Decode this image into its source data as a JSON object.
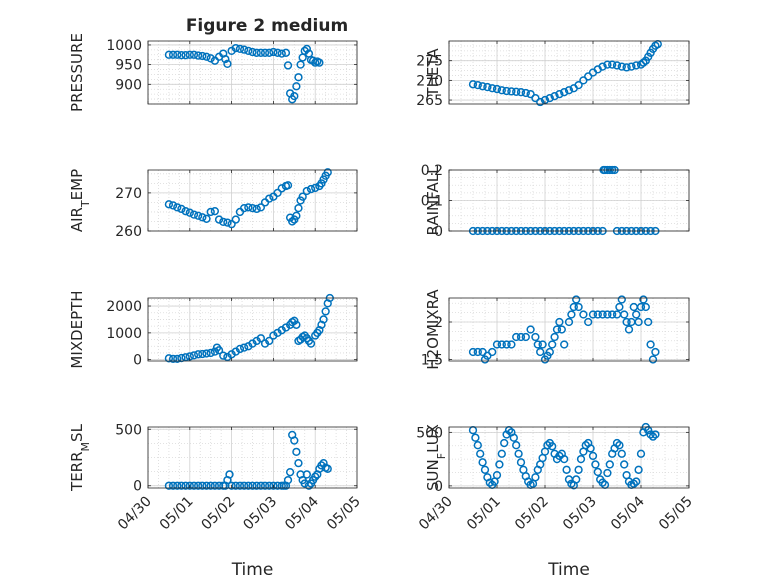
{
  "figure": {
    "title": "Figure 2 medium"
  },
  "chart_data": [
    {
      "type": "scatter",
      "ylabel": "PRESSURE",
      "xlabel": "",
      "ylim": [
        850,
        1010
      ],
      "yticks": [
        900,
        950,
        1000
      ],
      "xlim": [
        0,
        5
      ],
      "xticks": [
        0,
        1,
        2,
        3,
        4,
        5
      ],
      "xticklabels": [
        "04/30",
        "05/01",
        "05/02",
        "05/03",
        "05/04",
        "05/05"
      ],
      "show_xticklabels": false,
      "grid": "major+minor",
      "series": [
        {
          "color": "#0072BD",
          "x": [
            0.5,
            0.6,
            0.7,
            0.8,
            0.9,
            1.0,
            1.1,
            1.2,
            1.3,
            1.4,
            1.5,
            1.6,
            1.7,
            1.8,
            1.85,
            1.9,
            2.0,
            2.1,
            2.2,
            2.3,
            2.4,
            2.5,
            2.6,
            2.7,
            2.8,
            2.9,
            3.0,
            3.1,
            3.2,
            3.3,
            3.35,
            3.4,
            3.45,
            3.5,
            3.55,
            3.6,
            3.65,
            3.7,
            3.75,
            3.8,
            3.85,
            3.9,
            3.95,
            4.0,
            4.05,
            4.1
          ],
          "y": [
            975,
            975,
            975,
            974,
            974,
            975,
            975,
            973,
            972,
            970,
            966,
            960,
            970,
            978,
            964,
            952,
            985,
            992,
            990,
            988,
            985,
            982,
            980,
            980,
            980,
            980,
            982,
            980,
            978,
            980,
            948,
            877,
            862,
            870,
            895,
            918,
            950,
            968,
            985,
            990,
            978,
            962,
            960,
            955,
            958,
            955
          ]
        }
      ]
    },
    {
      "type": "scatter",
      "ylabel": "THETA",
      "xlabel": "",
      "ylim": [
        264,
        280
      ],
      "yticks": [
        265,
        270,
        275
      ],
      "xlim": [
        0,
        5
      ],
      "xticks": [
        0,
        1,
        2,
        3,
        4,
        5
      ],
      "xticklabels": [
        "04/30",
        "05/01",
        "05/02",
        "05/03",
        "05/04",
        "05/05"
      ],
      "show_xticklabels": false,
      "grid": "major+minor",
      "series": [
        {
          "color": "#0072BD",
          "x": [
            0.5,
            0.6,
            0.7,
            0.8,
            0.9,
            1.0,
            1.1,
            1.2,
            1.3,
            1.4,
            1.5,
            1.6,
            1.7,
            1.8,
            1.9,
            2.0,
            2.1,
            2.2,
            2.3,
            2.4,
            2.5,
            2.6,
            2.7,
            2.8,
            2.9,
            3.0,
            3.1,
            3.2,
            3.3,
            3.4,
            3.5,
            3.6,
            3.7,
            3.8,
            3.9,
            4.0,
            4.05,
            4.1,
            4.15,
            4.2,
            4.25,
            4.3,
            4.35
          ],
          "y": [
            269,
            268.8,
            268.5,
            268.3,
            268,
            267.8,
            267.5,
            267.3,
            267.2,
            267.1,
            267,
            266.8,
            266.5,
            265.5,
            264.5,
            265,
            265.5,
            266,
            266.5,
            267,
            267.5,
            268,
            268.8,
            270,
            271,
            272,
            272.8,
            273.5,
            274,
            274,
            273.8,
            273.5,
            273.3,
            273.5,
            273.8,
            274,
            274.5,
            275,
            276,
            277,
            278,
            278.8,
            279.2
          ]
        }
      ]
    },
    {
      "type": "scatter",
      "ylabel": "AIR_T_EMP",
      "xlabel": "",
      "ylim": [
        260,
        276
      ],
      "yticks": [
        260,
        270
      ],
      "xlim": [
        0,
        5
      ],
      "xticks": [
        0,
        1,
        2,
        3,
        4,
        5
      ],
      "xticklabels": [
        "04/30",
        "05/01",
        "05/02",
        "05/03",
        "05/04",
        "05/05"
      ],
      "show_xticklabels": false,
      "grid": "major+minor",
      "series": [
        {
          "color": "#0072BD",
          "x": [
            0.5,
            0.6,
            0.7,
            0.8,
            0.9,
            1.0,
            1.1,
            1.2,
            1.3,
            1.4,
            1.5,
            1.6,
            1.7,
            1.8,
            1.9,
            2.0,
            2.1,
            2.2,
            2.3,
            2.4,
            2.5,
            2.6,
            2.7,
            2.8,
            2.9,
            3.0,
            3.1,
            3.2,
            3.3,
            3.35,
            3.4,
            3.45,
            3.5,
            3.55,
            3.6,
            3.65,
            3.7,
            3.8,
            3.9,
            4.0,
            4.1,
            4.15,
            4.2,
            4.25,
            4.3
          ],
          "y": [
            267,
            266.7,
            266.2,
            265.8,
            265.2,
            264.8,
            264.3,
            264,
            263.6,
            263.2,
            265,
            265.2,
            263,
            262.4,
            262.2,
            261.8,
            263,
            265,
            266,
            266.2,
            266,
            265.8,
            266.2,
            267.5,
            268.5,
            269,
            270,
            271.2,
            271.8,
            272,
            263.5,
            262.5,
            263,
            264,
            266,
            268,
            269,
            270.5,
            271,
            271.3,
            271.8,
            272.5,
            273.5,
            274.5,
            275.4
          ]
        }
      ]
    },
    {
      "type": "scatter",
      "ylabel": "RAINFALL",
      "xlabel": "",
      "ylim": [
        0,
        0.2
      ],
      "yticks": [
        0,
        0.1,
        0.2
      ],
      "xlim": [
        0,
        5
      ],
      "xticks": [
        0,
        1,
        2,
        3,
        4,
        5
      ],
      "xticklabels": [
        "04/30",
        "05/01",
        "05/02",
        "05/03",
        "05/04",
        "05/05"
      ],
      "show_xticklabels": false,
      "grid": "major+minor",
      "series": [
        {
          "color": "#0072BD",
          "x": [
            0.5,
            0.6,
            0.7,
            0.8,
            0.9,
            1.0,
            1.1,
            1.2,
            1.3,
            1.4,
            1.5,
            1.6,
            1.7,
            1.8,
            1.9,
            2.0,
            2.1,
            2.2,
            2.3,
            2.4,
            2.5,
            2.6,
            2.7,
            2.8,
            2.9,
            3.0,
            3.1,
            3.2,
            3.22,
            3.25,
            3.3,
            3.35,
            3.4,
            3.45,
            3.5,
            3.6,
            3.7,
            3.8,
            3.9,
            4.0,
            4.1,
            4.2,
            4.3
          ],
          "y": [
            0,
            0,
            0,
            0,
            0,
            0,
            0,
            0,
            0,
            0,
            0,
            0,
            0,
            0,
            0,
            0,
            0,
            0,
            0,
            0,
            0,
            0,
            0,
            0,
            0,
            0,
            0,
            0,
            0.2,
            0.2,
            0.2,
            0.2,
            0.2,
            0.2,
            0,
            0,
            0,
            0,
            0,
            0,
            0,
            0,
            0
          ]
        }
      ]
    },
    {
      "type": "scatter",
      "ylabel": "MIXDEPTH",
      "xlabel": "",
      "ylim": [
        -50,
        2300
      ],
      "yticks": [
        0,
        1000,
        2000
      ],
      "xlim": [
        0,
        5
      ],
      "xticks": [
        0,
        1,
        2,
        3,
        4,
        5
      ],
      "xticklabels": [
        "04/30",
        "05/01",
        "05/02",
        "05/03",
        "05/04",
        "05/05"
      ],
      "show_xticklabels": false,
      "grid": "major+minor",
      "series": [
        {
          "color": "#0072BD",
          "x": [
            0.5,
            0.6,
            0.7,
            0.8,
            0.9,
            1.0,
            1.1,
            1.2,
            1.3,
            1.4,
            1.5,
            1.6,
            1.65,
            1.7,
            1.8,
            1.9,
            2.0,
            2.1,
            2.2,
            2.3,
            2.4,
            2.5,
            2.6,
            2.7,
            2.8,
            2.9,
            3.0,
            3.1,
            3.2,
            3.3,
            3.4,
            3.45,
            3.5,
            3.55,
            3.6,
            3.65,
            3.7,
            3.75,
            3.8,
            3.85,
            3.9,
            4.0,
            4.05,
            4.1,
            4.15,
            4.2,
            4.25,
            4.3,
            4.35
          ],
          "y": [
            50,
            30,
            30,
            60,
            90,
            120,
            160,
            200,
            210,
            230,
            250,
            300,
            450,
            350,
            150,
            100,
            200,
            300,
            400,
            450,
            500,
            600,
            700,
            800,
            600,
            700,
            900,
            1000,
            1100,
            1200,
            1300,
            1400,
            1450,
            1300,
            700,
            750,
            850,
            900,
            800,
            700,
            600,
            900,
            1000,
            1100,
            1300,
            1500,
            1800,
            2100,
            2300
          ]
        }
      ]
    },
    {
      "type": "scatter",
      "ylabel": "H2OMIXRA",
      "xlabel": "",
      "ylim": [
        1.48,
        2.32
      ],
      "yticks": [
        1.5,
        2
      ],
      "xlim": [
        0,
        5
      ],
      "xticks": [
        0,
        1,
        2,
        3,
        4,
        5
      ],
      "xticklabels": [
        "04/30",
        "05/01",
        "05/02",
        "05/03",
        "05/04",
        "05/05"
      ],
      "show_xticklabels": false,
      "grid": "major+minor",
      "series": [
        {
          "color": "#0072BD",
          "x": [
            0.5,
            0.6,
            0.7,
            0.75,
            0.8,
            0.9,
            1.0,
            1.1,
            1.2,
            1.3,
            1.4,
            1.5,
            1.6,
            1.7,
            1.8,
            1.85,
            1.9,
            1.95,
            2.0,
            2.05,
            2.1,
            2.15,
            2.2,
            2.25,
            2.3,
            2.35,
            2.4,
            2.5,
            2.55,
            2.6,
            2.65,
            2.7,
            2.8,
            2.9,
            3.0,
            3.1,
            3.2,
            3.3,
            3.4,
            3.5,
            3.55,
            3.6,
            3.65,
            3.7,
            3.75,
            3.8,
            3.85,
            3.9,
            3.95,
            4.0,
            4.05,
            4.1,
            4.15,
            4.2,
            4.25,
            4.3
          ],
          "y": [
            1.6,
            1.6,
            1.6,
            1.5,
            1.55,
            1.6,
            1.7,
            1.7,
            1.7,
            1.7,
            1.8,
            1.8,
            1.8,
            1.9,
            1.8,
            1.7,
            1.6,
            1.7,
            1.5,
            1.55,
            1.6,
            1.7,
            1.8,
            1.9,
            2.0,
            1.9,
            1.7,
            2.0,
            2.1,
            2.2,
            2.3,
            2.2,
            2.1,
            2.0,
            2.1,
            2.1,
            2.1,
            2.1,
            2.1,
            2.1,
            2.2,
            2.3,
            2.1,
            2.0,
            1.9,
            2.0,
            2.2,
            2.1,
            2.0,
            2.2,
            2.3,
            2.2,
            2.0,
            1.7,
            1.5,
            1.6
          ]
        }
      ]
    },
    {
      "type": "scatter",
      "ylabel": "TERR_M_SL",
      "xlabel": "Time",
      "ylim": [
        -20,
        520
      ],
      "yticks": [
        0,
        500
      ],
      "xlim": [
        0,
        5
      ],
      "xticks": [
        0,
        1,
        2,
        3,
        4,
        5
      ],
      "xticklabels": [
        "04/30",
        "05/01",
        "05/02",
        "05/03",
        "05/04",
        "05/05"
      ],
      "show_xticklabels": true,
      "grid": "major+minor",
      "series": [
        {
          "color": "#0072BD",
          "x": [
            0.5,
            0.6,
            0.7,
            0.8,
            0.9,
            1.0,
            1.1,
            1.2,
            1.3,
            1.4,
            1.5,
            1.6,
            1.7,
            1.8,
            1.85,
            1.9,
            1.95,
            2.0,
            2.1,
            2.2,
            2.3,
            2.4,
            2.5,
            2.6,
            2.7,
            2.8,
            2.9,
            3.0,
            3.1,
            3.2,
            3.25,
            3.3,
            3.35,
            3.4,
            3.45,
            3.5,
            3.55,
            3.6,
            3.65,
            3.7,
            3.75,
            3.8,
            3.85,
            3.9,
            3.95,
            4.0,
            4.05,
            4.1,
            4.15,
            4.2,
            4.25,
            4.3
          ],
          "y": [
            0,
            0,
            0,
            0,
            0,
            0,
            0,
            0,
            0,
            0,
            0,
            0,
            0,
            0,
            0,
            50,
            100,
            0,
            0,
            0,
            0,
            0,
            0,
            0,
            0,
            0,
            0,
            0,
            0,
            0,
            0,
            0,
            50,
            120,
            450,
            400,
            300,
            200,
            100,
            50,
            20,
            100,
            0,
            20,
            50,
            80,
            100,
            150,
            180,
            200,
            160,
            150
          ]
        }
      ]
    },
    {
      "type": "scatter",
      "ylabel": "SUN_F_LUX",
      "xlabel": "Time",
      "ylim": [
        -20,
        550
      ],
      "yticks": [
        0,
        500
      ],
      "xlim": [
        0,
        5
      ],
      "xticks": [
        0,
        1,
        2,
        3,
        4,
        5
      ],
      "xticklabels": [
        "04/30",
        "05/01",
        "05/02",
        "05/03",
        "05/04",
        "05/05"
      ],
      "show_xticklabels": true,
      "grid": "major+minor",
      "series": [
        {
          "color": "#0072BD",
          "x": [
            0.5,
            0.55,
            0.6,
            0.65,
            0.7,
            0.75,
            0.8,
            0.85,
            0.9,
            0.95,
            1.0,
            1.05,
            1.1,
            1.15,
            1.2,
            1.25,
            1.3,
            1.35,
            1.4,
            1.45,
            1.5,
            1.55,
            1.6,
            1.65,
            1.7,
            1.75,
            1.8,
            1.85,
            1.9,
            1.95,
            2.0,
            2.05,
            2.1,
            2.15,
            2.2,
            2.25,
            2.3,
            2.35,
            2.4,
            2.45,
            2.5,
            2.55,
            2.6,
            2.65,
            2.7,
            2.75,
            2.8,
            2.85,
            2.9,
            2.95,
            3.0,
            3.05,
            3.1,
            3.15,
            3.2,
            3.25,
            3.3,
            3.35,
            3.4,
            3.45,
            3.5,
            3.55,
            3.6,
            3.65,
            3.7,
            3.75,
            3.8,
            3.85,
            3.9,
            3.95,
            4.0,
            4.05,
            4.1,
            4.15,
            4.2,
            4.25,
            4.3
          ],
          "y": [
            520,
            450,
            380,
            300,
            220,
            150,
            80,
            30,
            10,
            40,
            100,
            200,
            300,
            400,
            480,
            520,
            500,
            450,
            380,
            300,
            220,
            150,
            90,
            40,
            10,
            20,
            80,
            150,
            200,
            260,
            320,
            380,
            400,
            370,
            300,
            250,
            280,
            300,
            250,
            150,
            60,
            20,
            5,
            60,
            150,
            250,
            320,
            380,
            400,
            350,
            280,
            200,
            130,
            60,
            30,
            10,
            120,
            200,
            300,
            350,
            400,
            380,
            300,
            200,
            100,
            40,
            10,
            20,
            40,
            150,
            300,
            500,
            550,
            520,
            480,
            460,
            480
          ]
        }
      ]
    }
  ]
}
